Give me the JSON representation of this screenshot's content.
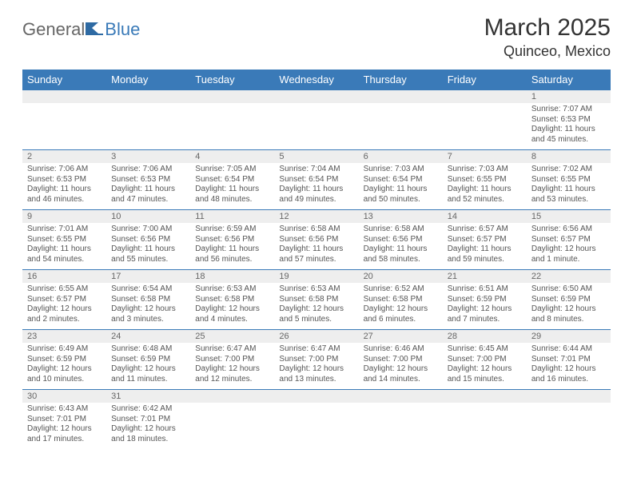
{
  "logo": {
    "general": "General",
    "blue": "Blue"
  },
  "title": "March 2025",
  "location": "Quinceo, Mexico",
  "colors": {
    "header_bg": "#3a7ab8",
    "header_text": "#ffffff",
    "daterow_bg": "#eeeeee",
    "daterow_text": "#666666",
    "body_text": "#555555",
    "page_bg": "#ffffff",
    "border": "#3a7ab8"
  },
  "daynames": [
    "Sunday",
    "Monday",
    "Tuesday",
    "Wednesday",
    "Thursday",
    "Friday",
    "Saturday"
  ],
  "weeks": [
    {
      "dates": [
        "",
        "",
        "",
        "",
        "",
        "",
        "1"
      ],
      "data": [
        null,
        null,
        null,
        null,
        null,
        null,
        {
          "sunrise": "Sunrise: 7:07 AM",
          "sunset": "Sunset: 6:53 PM",
          "daylight": "Daylight: 11 hours and 45 minutes."
        }
      ]
    },
    {
      "dates": [
        "2",
        "3",
        "4",
        "5",
        "6",
        "7",
        "8"
      ],
      "data": [
        {
          "sunrise": "Sunrise: 7:06 AM",
          "sunset": "Sunset: 6:53 PM",
          "daylight": "Daylight: 11 hours and 46 minutes."
        },
        {
          "sunrise": "Sunrise: 7:06 AM",
          "sunset": "Sunset: 6:53 PM",
          "daylight": "Daylight: 11 hours and 47 minutes."
        },
        {
          "sunrise": "Sunrise: 7:05 AM",
          "sunset": "Sunset: 6:54 PM",
          "daylight": "Daylight: 11 hours and 48 minutes."
        },
        {
          "sunrise": "Sunrise: 7:04 AM",
          "sunset": "Sunset: 6:54 PM",
          "daylight": "Daylight: 11 hours and 49 minutes."
        },
        {
          "sunrise": "Sunrise: 7:03 AM",
          "sunset": "Sunset: 6:54 PM",
          "daylight": "Daylight: 11 hours and 50 minutes."
        },
        {
          "sunrise": "Sunrise: 7:03 AM",
          "sunset": "Sunset: 6:55 PM",
          "daylight": "Daylight: 11 hours and 52 minutes."
        },
        {
          "sunrise": "Sunrise: 7:02 AM",
          "sunset": "Sunset: 6:55 PM",
          "daylight": "Daylight: 11 hours and 53 minutes."
        }
      ]
    },
    {
      "dates": [
        "9",
        "10",
        "11",
        "12",
        "13",
        "14",
        "15"
      ],
      "data": [
        {
          "sunrise": "Sunrise: 7:01 AM",
          "sunset": "Sunset: 6:55 PM",
          "daylight": "Daylight: 11 hours and 54 minutes."
        },
        {
          "sunrise": "Sunrise: 7:00 AM",
          "sunset": "Sunset: 6:56 PM",
          "daylight": "Daylight: 11 hours and 55 minutes."
        },
        {
          "sunrise": "Sunrise: 6:59 AM",
          "sunset": "Sunset: 6:56 PM",
          "daylight": "Daylight: 11 hours and 56 minutes."
        },
        {
          "sunrise": "Sunrise: 6:58 AM",
          "sunset": "Sunset: 6:56 PM",
          "daylight": "Daylight: 11 hours and 57 minutes."
        },
        {
          "sunrise": "Sunrise: 6:58 AM",
          "sunset": "Sunset: 6:56 PM",
          "daylight": "Daylight: 11 hours and 58 minutes."
        },
        {
          "sunrise": "Sunrise: 6:57 AM",
          "sunset": "Sunset: 6:57 PM",
          "daylight": "Daylight: 11 hours and 59 minutes."
        },
        {
          "sunrise": "Sunrise: 6:56 AM",
          "sunset": "Sunset: 6:57 PM",
          "daylight": "Daylight: 12 hours and 1 minute."
        }
      ]
    },
    {
      "dates": [
        "16",
        "17",
        "18",
        "19",
        "20",
        "21",
        "22"
      ],
      "data": [
        {
          "sunrise": "Sunrise: 6:55 AM",
          "sunset": "Sunset: 6:57 PM",
          "daylight": "Daylight: 12 hours and 2 minutes."
        },
        {
          "sunrise": "Sunrise: 6:54 AM",
          "sunset": "Sunset: 6:58 PM",
          "daylight": "Daylight: 12 hours and 3 minutes."
        },
        {
          "sunrise": "Sunrise: 6:53 AM",
          "sunset": "Sunset: 6:58 PM",
          "daylight": "Daylight: 12 hours and 4 minutes."
        },
        {
          "sunrise": "Sunrise: 6:53 AM",
          "sunset": "Sunset: 6:58 PM",
          "daylight": "Daylight: 12 hours and 5 minutes."
        },
        {
          "sunrise": "Sunrise: 6:52 AM",
          "sunset": "Sunset: 6:58 PM",
          "daylight": "Daylight: 12 hours and 6 minutes."
        },
        {
          "sunrise": "Sunrise: 6:51 AM",
          "sunset": "Sunset: 6:59 PM",
          "daylight": "Daylight: 12 hours and 7 minutes."
        },
        {
          "sunrise": "Sunrise: 6:50 AM",
          "sunset": "Sunset: 6:59 PM",
          "daylight": "Daylight: 12 hours and 8 minutes."
        }
      ]
    },
    {
      "dates": [
        "23",
        "24",
        "25",
        "26",
        "27",
        "28",
        "29"
      ],
      "data": [
        {
          "sunrise": "Sunrise: 6:49 AM",
          "sunset": "Sunset: 6:59 PM",
          "daylight": "Daylight: 12 hours and 10 minutes."
        },
        {
          "sunrise": "Sunrise: 6:48 AM",
          "sunset": "Sunset: 6:59 PM",
          "daylight": "Daylight: 12 hours and 11 minutes."
        },
        {
          "sunrise": "Sunrise: 6:47 AM",
          "sunset": "Sunset: 7:00 PM",
          "daylight": "Daylight: 12 hours and 12 minutes."
        },
        {
          "sunrise": "Sunrise: 6:47 AM",
          "sunset": "Sunset: 7:00 PM",
          "daylight": "Daylight: 12 hours and 13 minutes."
        },
        {
          "sunrise": "Sunrise: 6:46 AM",
          "sunset": "Sunset: 7:00 PM",
          "daylight": "Daylight: 12 hours and 14 minutes."
        },
        {
          "sunrise": "Sunrise: 6:45 AM",
          "sunset": "Sunset: 7:00 PM",
          "daylight": "Daylight: 12 hours and 15 minutes."
        },
        {
          "sunrise": "Sunrise: 6:44 AM",
          "sunset": "Sunset: 7:01 PM",
          "daylight": "Daylight: 12 hours and 16 minutes."
        }
      ]
    },
    {
      "dates": [
        "30",
        "31",
        "",
        "",
        "",
        "",
        ""
      ],
      "data": [
        {
          "sunrise": "Sunrise: 6:43 AM",
          "sunset": "Sunset: 7:01 PM",
          "daylight": "Daylight: 12 hours and 17 minutes."
        },
        {
          "sunrise": "Sunrise: 6:42 AM",
          "sunset": "Sunset: 7:01 PM",
          "daylight": "Daylight: 12 hours and 18 minutes."
        },
        null,
        null,
        null,
        null,
        null
      ]
    }
  ]
}
